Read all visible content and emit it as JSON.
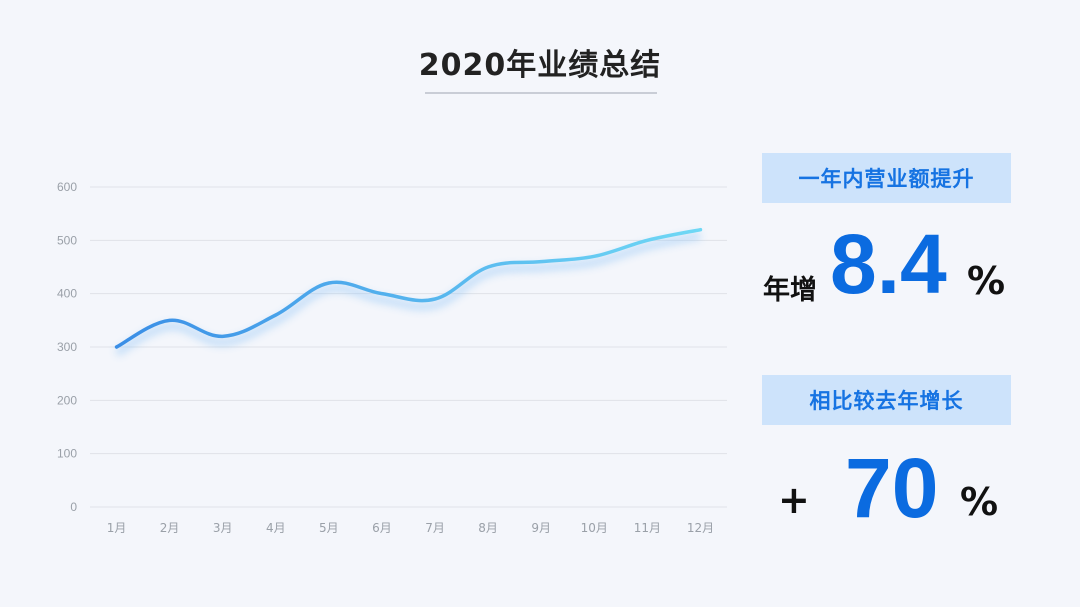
{
  "title": "2020年业绩总结",
  "chart_data": {
    "type": "line",
    "categories": [
      "1月",
      "2月",
      "3月",
      "4月",
      "5月",
      "6月",
      "7月",
      "8月",
      "9月",
      "10月",
      "11月",
      "12月"
    ],
    "series": [
      {
        "values": [
          300,
          350,
          320,
          360,
          420,
          400,
          390,
          450,
          460,
          470,
          500,
          520
        ]
      }
    ],
    "ylim": [
      0,
      600
    ],
    "yticks": [
      0,
      100,
      200,
      300,
      400,
      500,
      600
    ],
    "grid": true,
    "colors": {
      "line_start": "#3a8ee6",
      "line_end": "#6fd8f5",
      "grid": "#dfe2e8",
      "tick": "#9aa0a8"
    }
  },
  "stats": {
    "growth": {
      "label": "一年内营业额提升",
      "prefix": "年增",
      "value": "8.4",
      "unit": "%"
    },
    "yoy": {
      "label": "相比较去年增长",
      "prefix": "+",
      "value": "70",
      "unit": "%"
    }
  },
  "colors": {
    "accent": "#0b6be0",
    "label_bg": "#cde3fb",
    "label_text": "#1673e2",
    "background": "#f4f6fb"
  }
}
